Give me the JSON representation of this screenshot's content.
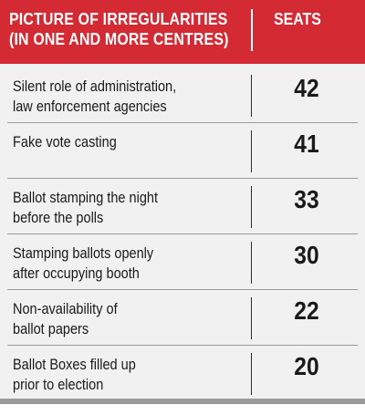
{
  "header": {
    "category_line1": "PICTURE OF IRREGULARITIES",
    "category_line2": "(IN ONE AND MORE CENTRES)",
    "value_header": "SEATS"
  },
  "colors": {
    "header_bg": "#d42a34",
    "body_bg": "#f1f1f1",
    "text": "#1a1a1a"
  },
  "chart_data": {
    "type": "table",
    "columns": [
      "PICTURE OF IRREGULARITIES (IN ONE AND MORE CENTRES)",
      "SEATS"
    ],
    "rows": [
      {
        "label_lines": [
          "Silent role of administration,",
          "law enforcement agencies"
        ],
        "value": 42
      },
      {
        "label_lines": [
          "Fake vote casting"
        ],
        "value": 41
      },
      {
        "label_lines": [
          "Ballot stamping the night",
          "before the polls"
        ],
        "value": 33
      },
      {
        "label_lines": [
          "Stamping ballots openly",
          "after occupying booth"
        ],
        "value": 30
      },
      {
        "label_lines": [
          "Non-availability of",
          "ballot papers"
        ],
        "value": 22
      },
      {
        "label_lines": [
          "Ballot Boxes filled up",
          "prior to election"
        ],
        "value": 20
      }
    ]
  }
}
